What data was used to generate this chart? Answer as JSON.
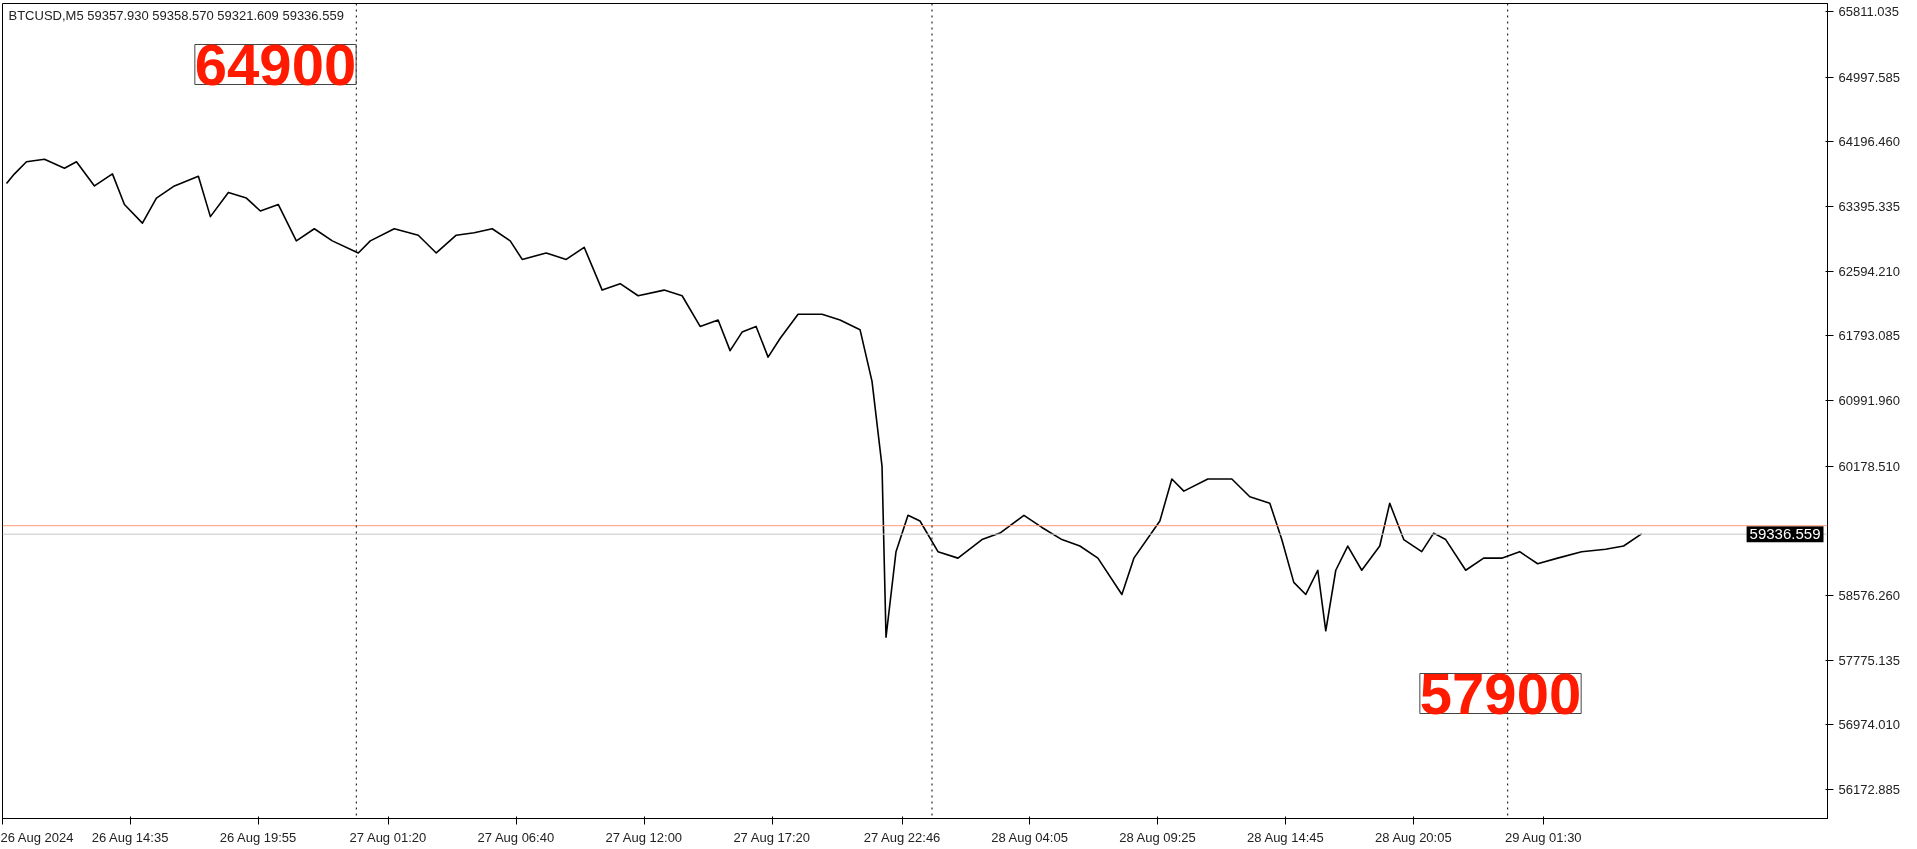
{
  "chart_data": {
    "type": "line",
    "title": "BTCUSD,M5  59357.930 59358.570 59321.609 59336.559",
    "x": [
      "2024-08-26T09:25",
      "2024-08-26T09:45",
      "2024-08-26T10:15",
      "2024-08-26T11:00",
      "2024-08-26T11:50",
      "2024-08-26T12:20",
      "2024-08-26T13:05",
      "2024-08-26T13:50",
      "2024-08-26T14:20",
      "2024-08-26T15:05",
      "2024-08-26T15:40",
      "2024-08-26T16:25",
      "2024-08-26T17:25",
      "2024-08-26T17:55",
      "2024-08-26T18:40",
      "2024-08-26T19:25",
      "2024-08-26T20:00",
      "2024-08-26T20:45",
      "2024-08-26T21:30",
      "2024-08-26T22:15",
      "2024-08-26T23:00",
      "2024-08-27T00:05",
      "2024-08-27T00:35",
      "2024-08-27T01:35",
      "2024-08-27T02:35",
      "2024-08-27T03:20",
      "2024-08-27T04:10",
      "2024-08-27T04:55",
      "2024-08-27T05:40",
      "2024-08-27T06:25",
      "2024-08-27T06:55",
      "2024-08-27T07:55",
      "2024-08-27T08:45",
      "2024-08-27T09:30",
      "2024-08-27T10:15",
      "2024-08-27T11:00",
      "2024-08-27T11:45",
      "2024-08-27T12:50",
      "2024-08-27T13:35",
      "2024-08-27T14:20",
      "2024-08-27T15:05",
      "2024-08-27T15:35",
      "2024-08-27T16:05",
      "2024-08-27T16:40",
      "2024-08-27T17:10",
      "2024-08-27T17:40",
      "2024-08-27T18:25",
      "2024-08-27T19:25",
      "2024-08-27T20:10",
      "2024-08-27T21:00",
      "2024-08-27T21:30",
      "2024-08-27T21:55",
      "2024-08-27T22:05",
      "2024-08-27T22:30",
      "2024-08-27T23:00",
      "2024-08-27T23:30",
      "2024-08-28T00:15",
      "2024-08-28T01:05",
      "2024-08-28T02:05",
      "2024-08-28T02:50",
      "2024-08-28T03:50",
      "2024-08-28T04:35",
      "2024-08-28T05:25",
      "2024-08-28T06:10",
      "2024-08-28T06:55",
      "2024-08-28T07:55",
      "2024-08-28T08:25",
      "2024-08-28T09:30",
      "2024-08-28T10:00",
      "2024-08-28T10:30",
      "2024-08-28T11:30",
      "2024-08-28T12:30",
      "2024-08-28T13:15",
      "2024-08-28T14:05",
      "2024-08-28T14:35",
      "2024-08-28T15:05",
      "2024-08-28T15:35",
      "2024-08-28T16:05",
      "2024-08-28T16:25",
      "2024-08-28T16:50",
      "2024-08-28T17:20",
      "2024-08-28T17:55",
      "2024-08-28T18:40",
      "2024-08-28T19:05",
      "2024-08-28T19:40",
      "2024-08-28T20:25",
      "2024-08-28T20:55",
      "2024-08-28T21:25",
      "2024-08-28T22:15",
      "2024-08-28T23:00",
      "2024-08-28T23:45",
      "2024-08-29T00:30",
      "2024-08-29T01:15",
      "2024-08-29T02:05",
      "2024-08-29T03:05",
      "2024-08-29T04:05",
      "2024-08-29T04:50",
      "2024-08-29T05:35"
    ],
    "series": [
      {
        "color": "#000000",
        "values": [
          63680,
          63800,
          63950,
          63980,
          63870,
          63950,
          63650,
          63800,
          63420,
          63190,
          63500,
          63650,
          63770,
          63270,
          63570,
          63500,
          63340,
          63420,
          62970,
          63120,
          62970,
          62820,
          62970,
          63120,
          63040,
          62820,
          63040,
          63070,
          63120,
          62970,
          62740,
          62820,
          62740,
          62890,
          62360,
          62440,
          62290,
          62360,
          62290,
          61910,
          61990,
          61610,
          61840,
          61910,
          61530,
          61760,
          62060,
          62060,
          61990,
          61870,
          61230,
          60180,
          58060,
          59120,
          59570,
          59500,
          59120,
          59040,
          59270,
          59350,
          59570,
          59420,
          59270,
          59190,
          59040,
          58590,
          59040,
          59500,
          60020,
          59870,
          60020,
          60020,
          59800,
          59720,
          59270,
          58740,
          58590,
          58890,
          58140,
          58890,
          59190,
          58890,
          59190,
          59720,
          59270,
          59120,
          59350,
          59270,
          58890,
          59040,
          59040,
          59120,
          58970,
          59040,
          59120,
          59150,
          59190,
          59340
        ]
      }
    ],
    "xlim": [
      "2024-08-26T09:15",
      "2024-08-29T13:20"
    ],
    "xticks": [
      {
        "value": "2024-08-26T09:15",
        "label": "26 Aug 2024"
      },
      {
        "value": "2024-08-26T14:35",
        "label": "26 Aug 14:35"
      },
      {
        "value": "2024-08-26T19:55",
        "label": "26 Aug 19:55"
      },
      {
        "value": "2024-08-27T01:20",
        "label": "27 Aug 01:20"
      },
      {
        "value": "2024-08-27T06:40",
        "label": "27 Aug 06:40"
      },
      {
        "value": "2024-08-27T12:00",
        "label": "27 Aug 12:00"
      },
      {
        "value": "2024-08-27T17:20",
        "label": "27 Aug 17:20"
      },
      {
        "value": "2024-08-27T22:46",
        "label": "27 Aug 22:46"
      },
      {
        "value": "2024-08-28T04:05",
        "label": "28 Aug 04:05"
      },
      {
        "value": "2024-08-28T09:25",
        "label": "28 Aug 09:25"
      },
      {
        "value": "2024-08-28T14:45",
        "label": "28 Aug 14:45"
      },
      {
        "value": "2024-08-28T20:05",
        "label": "28 Aug 20:05"
      },
      {
        "value": "2024-08-29T01:30",
        "label": "29 Aug 01:30"
      }
    ],
    "ylim": [
      55815,
      65910
    ],
    "yticks": [
      {
        "value": 65811.035,
        "label": "65811.035"
      },
      {
        "value": 64997.585,
        "label": "64997.585"
      },
      {
        "value": 64196.46,
        "label": "64196.460"
      },
      {
        "value": 63395.335,
        "label": "63395.335"
      },
      {
        "value": 62594.21,
        "label": "62594.210"
      },
      {
        "value": 61793.085,
        "label": "61793.085"
      },
      {
        "value": 60991.96,
        "label": "60991.960"
      },
      {
        "value": 60178.51,
        "label": "60178.510"
      },
      {
        "value": 58576.26,
        "label": "58576.260"
      },
      {
        "value": 57775.135,
        "label": "57775.135"
      },
      {
        "value": 56974.01,
        "label": "56974.010"
      },
      {
        "value": 56172.885,
        "label": "56172.885"
      }
    ],
    "ref_lines": [
      {
        "axis": "y",
        "value": 59336.559,
        "label": "59336.559",
        "color": "#c8c8c8"
      },
      {
        "axis": "y",
        "value": 59441.85,
        "color": "#ff9a80"
      },
      {
        "axis": "x",
        "value": "2024-08-27T00:00",
        "color": "#000000",
        "line_style": "dotted"
      },
      {
        "axis": "x",
        "value": "2024-08-28T00:00",
        "color": "#000000",
        "line_style": "dotted"
      },
      {
        "axis": "x",
        "value": "2024-08-29T00:00",
        "color": "#000000",
        "line_style": "dotted"
      }
    ],
    "annotations": [
      "64900",
      "57900"
    ],
    "grid": false,
    "marker": "none",
    "line_style": "solid"
  }
}
